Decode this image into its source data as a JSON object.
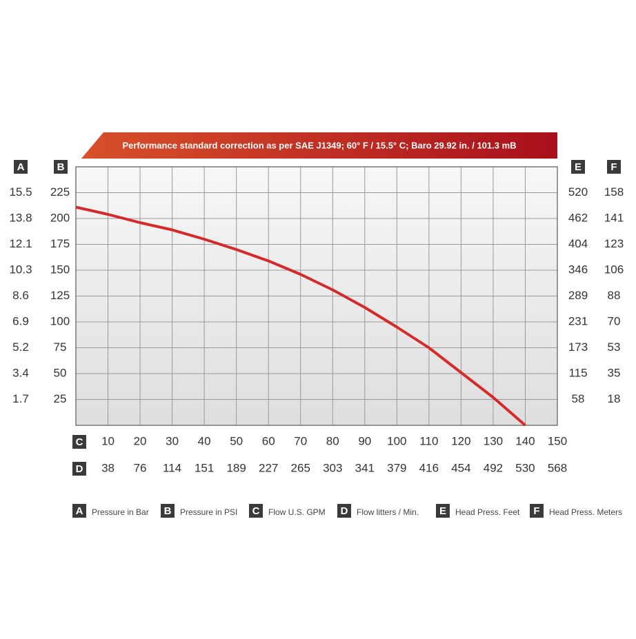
{
  "chart_data": {
    "type": "line",
    "title": "Performance standard correction as per SAE J1349;  60° F / 15.5° C;  Baro 29.92 in. / 101.3 mB",
    "x": [
      0,
      10,
      20,
      30,
      40,
      50,
      60,
      70,
      80,
      90,
      100,
      110,
      120,
      130,
      140
    ],
    "series": [
      {
        "color": "#d42a2a",
        "values": [
          211,
          204,
          196,
          189,
          180,
          170,
          159,
          146,
          131,
          114,
          95,
          75,
          51,
          27,
          0
        ]
      }
    ],
    "xlim": [
      0,
      150
    ],
    "xticks": [
      10,
      20,
      30,
      40,
      50,
      60,
      70,
      80,
      90,
      100,
      110,
      120,
      130,
      140,
      150
    ],
    "ylim": [
      0,
      250
    ],
    "yticks": [
      25,
      50,
      75,
      100,
      125,
      150,
      175,
      200,
      225
    ],
    "grid": true,
    "scales": [
      {
        "key": "A",
        "name": "Pressure in Bar",
        "ticks": [
          1.7,
          3.4,
          5.2,
          6.9,
          8.6,
          10.3,
          12.1,
          13.8,
          15.5
        ]
      },
      {
        "key": "B",
        "name": "Pressure in PSI"
      },
      {
        "key": "C",
        "name": "Flow U.S. GPM"
      },
      {
        "key": "D",
        "name": "Flow litters / Min.",
        "ticks": [
          38,
          76,
          114,
          151,
          189,
          227,
          265,
          303,
          341,
          379,
          416,
          454,
          492,
          530,
          568
        ]
      },
      {
        "key": "E",
        "name": "Head Press. Feet",
        "ticks": [
          58,
          115,
          173,
          231,
          289,
          346,
          404,
          462,
          520
        ]
      },
      {
        "key": "F",
        "name": "Head Press. Meters",
        "ticks": [
          18,
          35,
          53,
          70,
          88,
          106,
          123,
          141,
          158
        ]
      }
    ]
  }
}
